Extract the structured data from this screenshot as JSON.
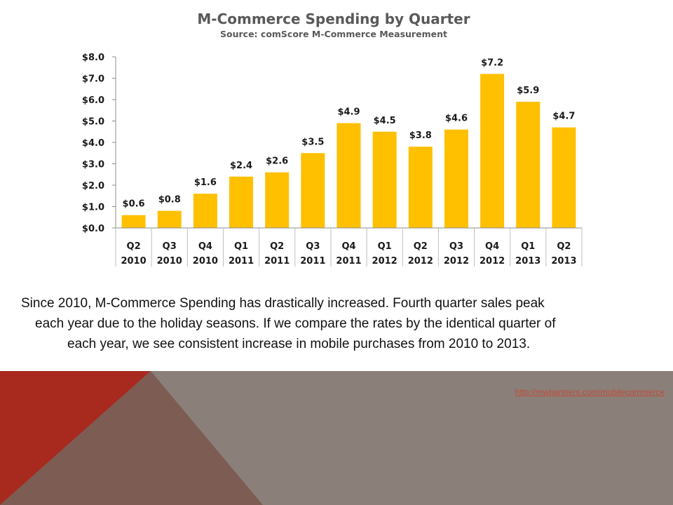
{
  "chart_data": {
    "type": "bar",
    "title": "M-Commerce Spending by Quarter",
    "subtitle": "Source: comScore M-Commerce Measurement",
    "categories": [
      [
        "Q2",
        "2010"
      ],
      [
        "Q3",
        "2010"
      ],
      [
        "Q4",
        "2010"
      ],
      [
        "Q1",
        "2011"
      ],
      [
        "Q2",
        "2011"
      ],
      [
        "Q3",
        "2011"
      ],
      [
        "Q4",
        "2011"
      ],
      [
        "Q1",
        "2012"
      ],
      [
        "Q2",
        "2012"
      ],
      [
        "Q3",
        "2012"
      ],
      [
        "Q4",
        "2012"
      ],
      [
        "Q1",
        "2013"
      ],
      [
        "Q2",
        "2013"
      ]
    ],
    "values": [
      0.6,
      0.8,
      1.6,
      2.4,
      2.6,
      3.5,
      4.9,
      4.5,
      3.8,
      4.6,
      7.2,
      5.9,
      4.7
    ],
    "data_labels": [
      "$0.6",
      "$0.8",
      "$1.6",
      "$2.4",
      "$2.6",
      "$3.5",
      "$4.9",
      "$4.5",
      "$3.8",
      "$4.6",
      "$7.2",
      "$5.9",
      "$4.7"
    ],
    "ylim": [
      0,
      8
    ],
    "yticks": [
      0,
      1,
      2,
      3,
      4,
      5,
      6,
      7,
      8
    ],
    "ytick_labels": [
      "$0.0",
      "$1.0",
      "$2.0",
      "$3.0",
      "$4.0",
      "$5.0",
      "$6.0",
      "$7.0",
      "$8.0"
    ],
    "grid": false,
    "bar_color": "#FFC000"
  },
  "caption": {
    "line1": "Since 2010, M-Commerce Spending has drastically increased. Fourth quarter sales peak",
    "line2": "each year due to the holiday seasons. If we compare the rates by the identical quarter of",
    "line3": "each year, we see consistent increase in mobile purchases from 2010 to 2013."
  },
  "footer": {
    "link_text": "http://mwpartners.com/mobilecommerce",
    "colors": {
      "red": "#A8291E",
      "brown": "#7D5C54",
      "gray": "#8A8079"
    }
  }
}
